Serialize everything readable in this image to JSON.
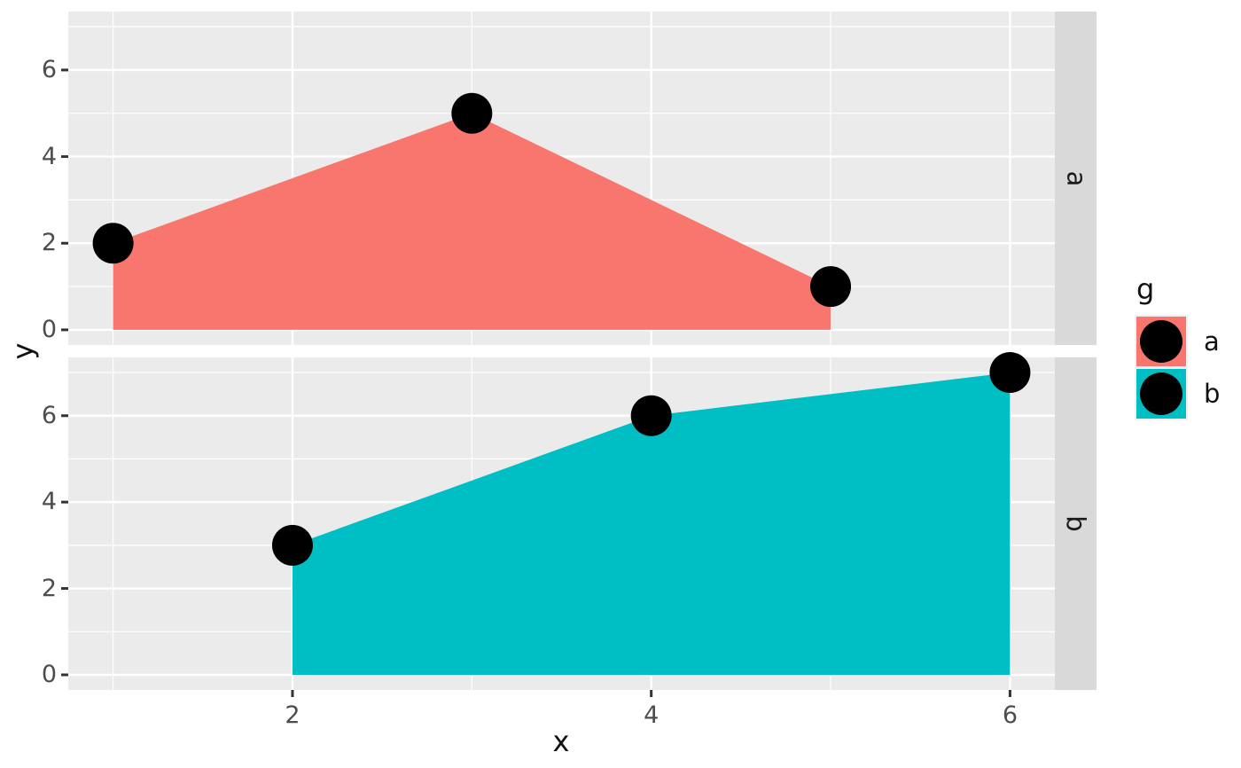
{
  "chart_data": {
    "type": "area",
    "xlabel": "x",
    "ylabel": "y",
    "x_domain": [
      0.75,
      6.25
    ],
    "y_domain": [
      -0.35,
      7.35
    ],
    "x_major_ticks": [
      2,
      4,
      6
    ],
    "x_minor_ticks": [
      1,
      3,
      5
    ],
    "y_major_ticks": [
      0,
      2,
      4,
      6
    ],
    "y_minor_ticks": [
      1,
      3,
      5,
      7
    ],
    "grid": "on",
    "facets": [
      {
        "label": "a",
        "series": "a",
        "color": "#F8766D",
        "baseline": 0,
        "points": [
          {
            "x": 1,
            "y": 2
          },
          {
            "x": 3,
            "y": 5
          },
          {
            "x": 5,
            "y": 1
          }
        ]
      },
      {
        "label": "b",
        "series": "b",
        "color": "#00BFC4",
        "baseline": 0,
        "points": [
          {
            "x": 2,
            "y": 3
          },
          {
            "x": 4,
            "y": 6
          },
          {
            "x": 6,
            "y": 7
          }
        ]
      }
    ],
    "point_color": "#000000",
    "colors": {
      "panel_bg": "#EBEBEB",
      "grid_line": "#FFFFFF",
      "strip_bg": "#D9D9D9",
      "tick_mark": "#333333",
      "tick_text": "#4D4D4D",
      "title_text": "#111111"
    }
  },
  "legend": {
    "title": "g",
    "position": "right",
    "entries": [
      {
        "label": "a",
        "color": "#F8766D"
      },
      {
        "label": "b",
        "color": "#00BFC4"
      }
    ]
  }
}
